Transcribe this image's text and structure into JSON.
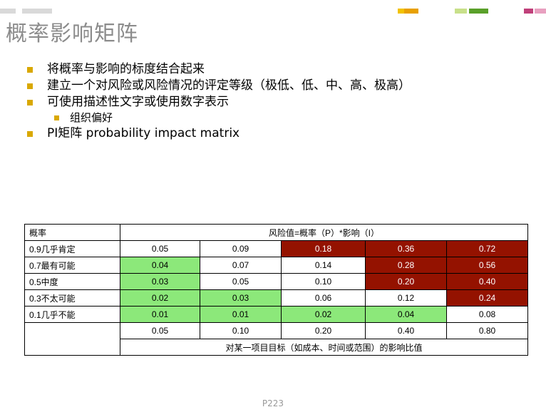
{
  "slide": {
    "title": "概率影响矩阵",
    "page_number": "P223",
    "colors": {
      "bullet": "#d9a800",
      "low_risk": "#8ce87a",
      "high_risk": "#941200",
      "title": "#8c8c8c"
    }
  },
  "bullets": [
    {
      "text": "将概率与影响的标度结合起来",
      "level": 1
    },
    {
      "text": "建立一个对风险或风险情况的评定等级（极低、低、中、高、极高）",
      "level": 1
    },
    {
      "text": "可使用描述性文字或使用数字表示",
      "level": 1
    },
    {
      "text": "组织偏好",
      "level": 2
    },
    {
      "text": "PI矩阵 probability impact matrix",
      "level": 1
    }
  ],
  "matrix": {
    "corner_label": "概率",
    "header_label": "风险值=概率（P）*影响（I）",
    "rows": [
      {
        "label": "0.9几乎肯定",
        "cells": [
          {
            "value": "0.05",
            "level": "none"
          },
          {
            "value": "0.09",
            "level": "none"
          },
          {
            "value": "0.18",
            "level": "high"
          },
          {
            "value": "0.36",
            "level": "high"
          },
          {
            "value": "0.72",
            "level": "high"
          }
        ]
      },
      {
        "label": "0.7最有可能",
        "cells": [
          {
            "value": "0.04",
            "level": "low"
          },
          {
            "value": "0.07",
            "level": "none"
          },
          {
            "value": "0.14",
            "level": "none"
          },
          {
            "value": "0.28",
            "level": "high"
          },
          {
            "value": "0.56",
            "level": "high"
          }
        ]
      },
      {
        "label": "0.5中度",
        "cells": [
          {
            "value": "0.03",
            "level": "low"
          },
          {
            "value": "0.05",
            "level": "none"
          },
          {
            "value": "0.10",
            "level": "none"
          },
          {
            "value": "0.20",
            "level": "high"
          },
          {
            "value": "0.40",
            "level": "high"
          }
        ]
      },
      {
        "label": "0.3不太可能",
        "cells": [
          {
            "value": "0.02",
            "level": "low"
          },
          {
            "value": "0.03",
            "level": "low"
          },
          {
            "value": "0.06",
            "level": "none"
          },
          {
            "value": "0.12",
            "level": "none"
          },
          {
            "value": "0.24",
            "level": "high"
          }
        ]
      },
      {
        "label": "0.1几乎不能",
        "cells": [
          {
            "value": "0.01",
            "level": "low"
          },
          {
            "value": "0.01",
            "level": "low"
          },
          {
            "value": "0.02",
            "level": "low"
          },
          {
            "value": "0.04",
            "level": "low"
          },
          {
            "value": "0.08",
            "level": "none"
          }
        ]
      }
    ],
    "impact_values": [
      "0.05",
      "0.10",
      "0.20",
      "0.40",
      "0.80"
    ],
    "impact_label": "对某一项目目标（如成本、时间或范围）的影响比值"
  }
}
